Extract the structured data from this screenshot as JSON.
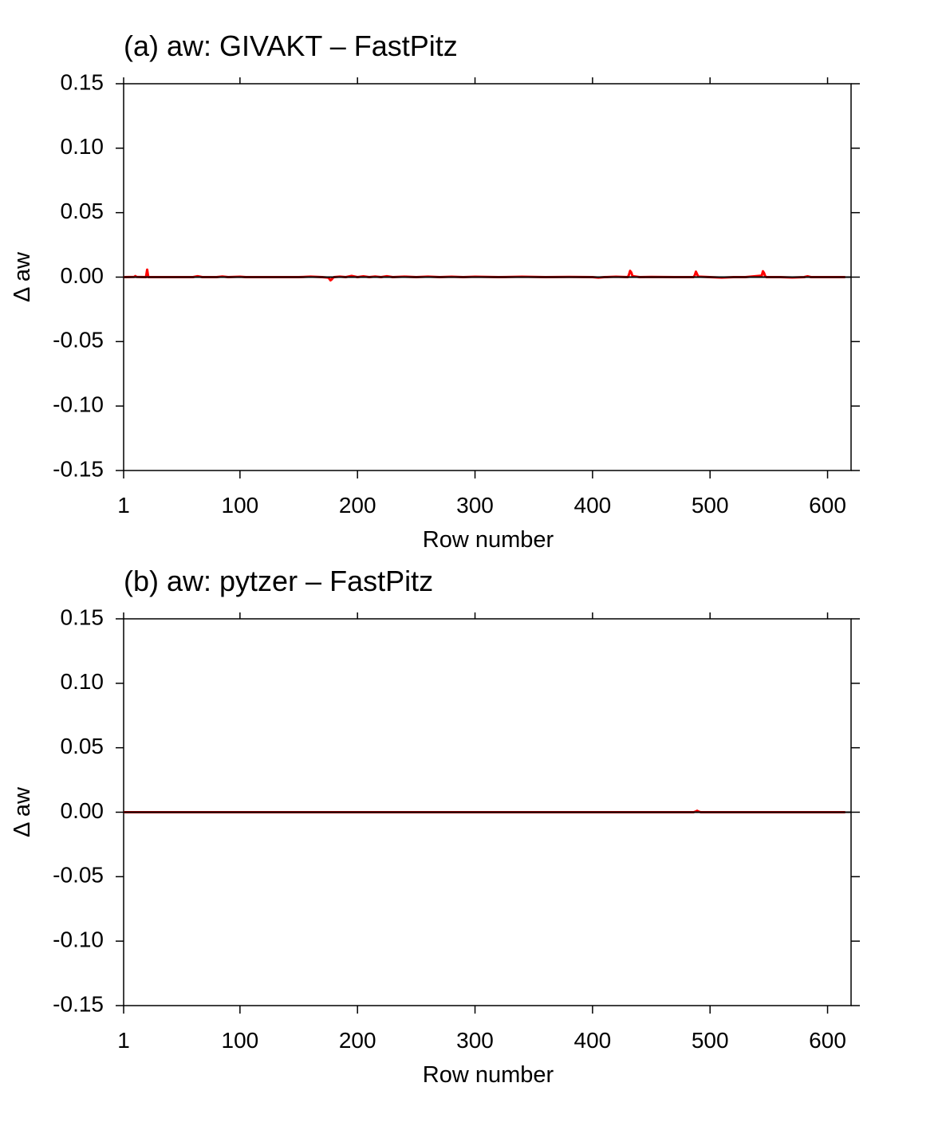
{
  "chart_data": [
    {
      "type": "line",
      "title": "(a) aw: GIVAKT – FastPitz",
      "xlabel": "Row number",
      "ylabel": "Δ aw",
      "xlim": [
        1,
        620
      ],
      "ylim": [
        -0.15,
        0.15
      ],
      "xticks": [
        1,
        100,
        200,
        300,
        400,
        500,
        600
      ],
      "xtick_labels": [
        "1",
        "100",
        "200",
        "300",
        "400",
        "500",
        "600"
      ],
      "yticks": [
        0.15,
        0.1,
        0.05,
        0.0,
        -0.05,
        -0.1,
        -0.15
      ],
      "ytick_labels": [
        "0.15",
        "0.10",
        "0.05",
        "0.00",
        "-0.05",
        "-0.10",
        "-0.15"
      ],
      "grid": false,
      "reference_line_y": 0,
      "line_color": "#ff0000",
      "series": [
        {
          "x": [
            1,
            10,
            11,
            12,
            20,
            21,
            22,
            60,
            64,
            68,
            80,
            85,
            90,
            100,
            105,
            150,
            160,
            170,
            175,
            176,
            177,
            178,
            179,
            180,
            185,
            190,
            195,
            200,
            205,
            210,
            215,
            220,
            225,
            230,
            240,
            250,
            260,
            270,
            280,
            290,
            300,
            320,
            340,
            360,
            380,
            400,
            405,
            410,
            420,
            430,
            431,
            432,
            433,
            434,
            440,
            450,
            470,
            486,
            487,
            488,
            489,
            490,
            500,
            510,
            520,
            530,
            544,
            545,
            546,
            547,
            548,
            560,
            570,
            580,
            583,
            586,
            600,
            615
          ],
          "values": [
            0,
            0.0002,
            0.0008,
            0.0002,
            0,
            0.0058,
            0,
            0,
            0.0007,
            0,
            0,
            0.0005,
            0,
            0.0003,
            0,
            0,
            0.0004,
            0,
            -0.0004,
            -0.0012,
            -0.0025,
            -0.0018,
            -0.0006,
            0,
            0.0004,
            0,
            0.0009,
            0,
            0.0006,
            0,
            0.0005,
            0,
            0.0007,
            0,
            0.0004,
            0,
            0.0004,
            0,
            0.0003,
            0,
            0.0003,
            0,
            0.0003,
            0,
            0.0002,
            0,
            -0.0004,
            0,
            0.0003,
            0,
            0.0018,
            0.0048,
            0.0035,
            0.0008,
            0,
            0.0002,
            0,
            0,
            0.0015,
            0.0042,
            0.0022,
            0.0004,
            0,
            -0.0004,
            0,
            0,
            0.0012,
            0.0045,
            0.003,
            0.0006,
            0,
            0,
            -0.0003,
            0,
            0.0006,
            0,
            0,
            0
          ]
        }
      ]
    },
    {
      "type": "line",
      "title": "(b) aw: pytzer – FastPitz",
      "xlabel": "Row number",
      "ylabel": "Δ aw",
      "xlim": [
        1,
        620
      ],
      "ylim": [
        -0.15,
        0.15
      ],
      "xticks": [
        1,
        100,
        200,
        300,
        400,
        500,
        600
      ],
      "xtick_labels": [
        "1",
        "100",
        "200",
        "300",
        "400",
        "500",
        "600"
      ],
      "yticks": [
        0.15,
        0.1,
        0.05,
        0.0,
        -0.05,
        -0.1,
        -0.15
      ],
      "ytick_labels": [
        "0.15",
        "0.10",
        "0.05",
        "0.00",
        "-0.05",
        "-0.10",
        "-0.15"
      ],
      "grid": false,
      "reference_line_y": 0,
      "line_color": "#ff0000",
      "series": [
        {
          "x": [
            1,
            100,
            200,
            300,
            400,
            486,
            488,
            489,
            490,
            492,
            500,
            600,
            615
          ],
          "values": [
            0,
            0,
            0,
            0,
            0,
            0,
            0.0006,
            0.0012,
            0.0006,
            0,
            0,
            0,
            0
          ]
        }
      ]
    }
  ]
}
